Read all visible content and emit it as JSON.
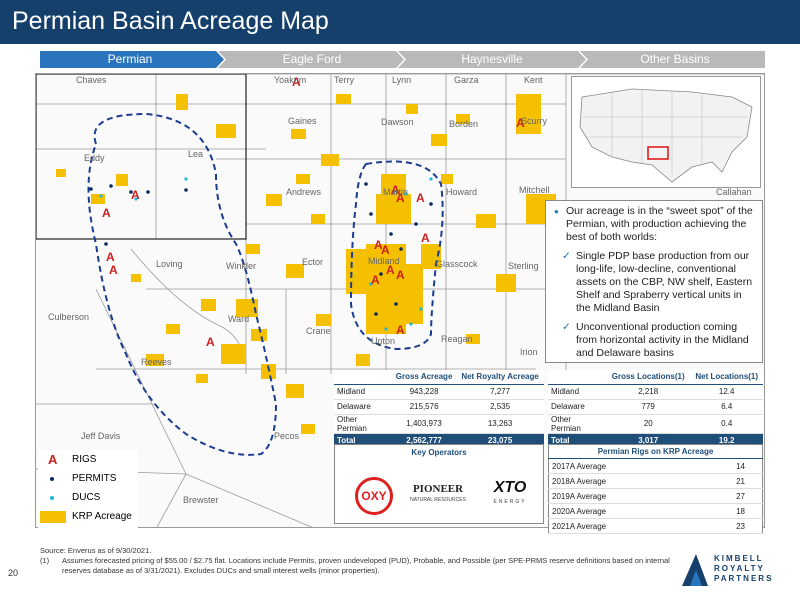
{
  "title": "Permian Basin Acreage Map",
  "tabs": [
    "Permian",
    "Eagle Ford",
    "Haynesville",
    "Other Basins"
  ],
  "counties": [
    {
      "name": "Chaves"
    },
    {
      "name": "Yoakum"
    },
    {
      "name": "Terry"
    },
    {
      "name": "Lynn"
    },
    {
      "name": "Garza"
    },
    {
      "name": "Kent"
    },
    {
      "name": "Eddy"
    },
    {
      "name": "Lea"
    },
    {
      "name": "Gaines"
    },
    {
      "name": "Dawson"
    },
    {
      "name": "Borden"
    },
    {
      "name": "Scurry"
    },
    {
      "name": "Andrews"
    },
    {
      "name": "Martin"
    },
    {
      "name": "Howard"
    },
    {
      "name": "Mitchell"
    },
    {
      "name": "Loving"
    },
    {
      "name": "Winkler"
    },
    {
      "name": "Ector"
    },
    {
      "name": "Midland"
    },
    {
      "name": "Glasscock"
    },
    {
      "name": "Sterling"
    },
    {
      "name": "Culberson"
    },
    {
      "name": "Ward"
    },
    {
      "name": "Crane"
    },
    {
      "name": "Upton"
    },
    {
      "name": "Reagan"
    },
    {
      "name": "Irion"
    },
    {
      "name": "Reeves"
    },
    {
      "name": "Jeff Davis"
    },
    {
      "name": "Pecos"
    },
    {
      "name": "Brewster"
    },
    {
      "name": "Callahan"
    }
  ],
  "bullet": "Our acreage is in the “sweet spot” of the Permian, with production achieving the best of both worlds:",
  "subbullets": [
    "Single PDP base production from our long-life, low-decline, conventional assets on the CBP, NW shelf, Eastern Shelf and Spraberry vertical units in the Midland Basin",
    "Unconventional production coming from horizontal activity in the Midland and Delaware basins"
  ],
  "acreage_table": {
    "headers": [
      "",
      "Gross Acreage",
      "Net Royalty Acreage"
    ],
    "rows": [
      [
        "Midland",
        "943,228",
        "7,277"
      ],
      [
        "Delaware",
        "215,576",
        "2,535"
      ],
      [
        "Other Permian",
        "1,403,973",
        "13,263"
      ]
    ],
    "total": [
      "Total",
      "2,562,777",
      "23,075"
    ]
  },
  "locations_table": {
    "headers": [
      "",
      "Gross Locations(1)",
      "Net Locations(1)"
    ],
    "rows": [
      [
        "Midland",
        "2,218",
        "12.4"
      ],
      [
        "Delaware",
        "779",
        "6.4"
      ],
      [
        "Other Permian",
        "20",
        "0.4"
      ]
    ],
    "total": [
      "Total",
      "3,017",
      "19.2"
    ]
  },
  "key_operators": {
    "title": "Key Operators",
    "logos": [
      "OXY",
      "PIONEER",
      "NATURAL RESOURCES",
      "XTO",
      "ENERGY"
    ]
  },
  "rigs_table": {
    "title": "Permian Rigs on KRP Acreage",
    "rows": [
      [
        "2017A Average",
        "14"
      ],
      [
        "2018A Average",
        "21"
      ],
      [
        "2019A Average",
        "27"
      ],
      [
        "2020A Average",
        "18"
      ],
      [
        "2021A Average",
        "23"
      ]
    ]
  },
  "legend": [
    "RIGS",
    "PERMITS",
    "DUCS",
    "KRP Acreage"
  ],
  "footer": {
    "source": "Source:  Enverus as of 9/30/2021.",
    "note_num": "(1)",
    "note": "Assumes forecasted pricing of $55.00 / $2.75 flat.  Locations include Permits, proven undeveloped (PUD), Probable, and Possible (per SPE-PRMS reserve definitions based on internal reserves database as of 3/31/2021).  Excludes DUCs  and small interest wells (minor properties).",
    "page": "20"
  },
  "logo": [
    "KIMBELL",
    "ROYALTY",
    "PARTNERS"
  ],
  "colors": {
    "header": "#14406b",
    "accent": "#f5c000",
    "tab_active": "#2a74bd",
    "tab_inactive": "#b9b9b9"
  }
}
